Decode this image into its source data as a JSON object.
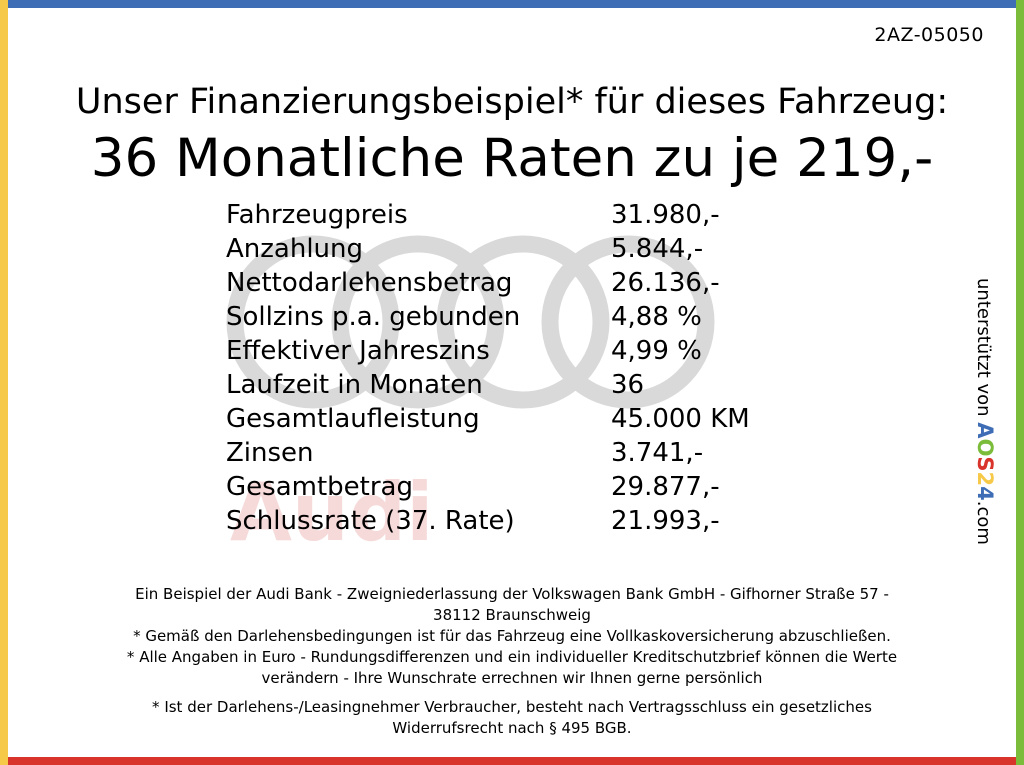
{
  "vehicle_code": "2AZ-05050",
  "headline": "Unser Finanzierungsbeispiel* für dieses Fahrzeug:",
  "subline": "36 Monatliche Raten zu je 219,-",
  "watermark_text": "Audi",
  "finance_table": [
    {
      "label": "Fahrzeugpreis",
      "value": "31.980,-"
    },
    {
      "label": "Anzahlung",
      "value": "5.844,-"
    },
    {
      "label": "Nettodarlehensbetrag",
      "value": "26.136,-"
    },
    {
      "label": "Sollzins p.a. gebunden",
      "value": "4,88 %"
    },
    {
      "label": "Effektiver Jahreszins",
      "value": "4,99 %"
    },
    {
      "label": "Laufzeit in Monaten",
      "value": "36"
    },
    {
      "label": "Gesamtlaufleistung",
      "value": "45.000 KM"
    },
    {
      "label": "Zinsen",
      "value": "3.741,-"
    },
    {
      "label": "Gesamtbetrag",
      "value": "29.877,-"
    },
    {
      "label": "Schlussrate (37. Rate)",
      "value": "21.993,-"
    }
  ],
  "side_credit": {
    "prefix": "unterstützt von",
    "brand_a": "A",
    "brand_o": "O",
    "brand_s": "S",
    "brand_2": "2",
    "brand_4": "4",
    "suffix": ".com"
  },
  "footer": {
    "bank_line1": "Ein Beispiel der Audi Bank -  Zweigniederlassung der Volkswagen Bank GmbH - Gifhorner Straße 57 -",
    "bank_line2": "38112 Braunschweig",
    "insurance_note": "* Gemäß den Darlehensbedingungen ist für das Fahrzeug eine Vollkaskoversicherung abzuschließen.",
    "rounding_note_line1": "* Alle Angaben in Euro - Rundungsdifferenzen und ein individueller Kreditschutzbrief können die Werte",
    "rounding_note_line2": "verändern - Ihre Wunschrate errechnen wir Ihnen gerne persönlich",
    "withdrawal_note_line1": "* Ist der Darlehens-/Leasingnehmer Verbraucher, besteht nach Vertragsschluss ein gesetzliches",
    "withdrawal_note_line2": "Widerrufsrecht nach § 495 BGB."
  },
  "colors": {
    "top_bar": "#3e6db5",
    "bottom_bar": "#d9342b",
    "left_bar": "#f7c948",
    "right_bar": "#7bbd3b",
    "watermark_rings": "#d9d9d9",
    "watermark_text": "#f6dada"
  }
}
